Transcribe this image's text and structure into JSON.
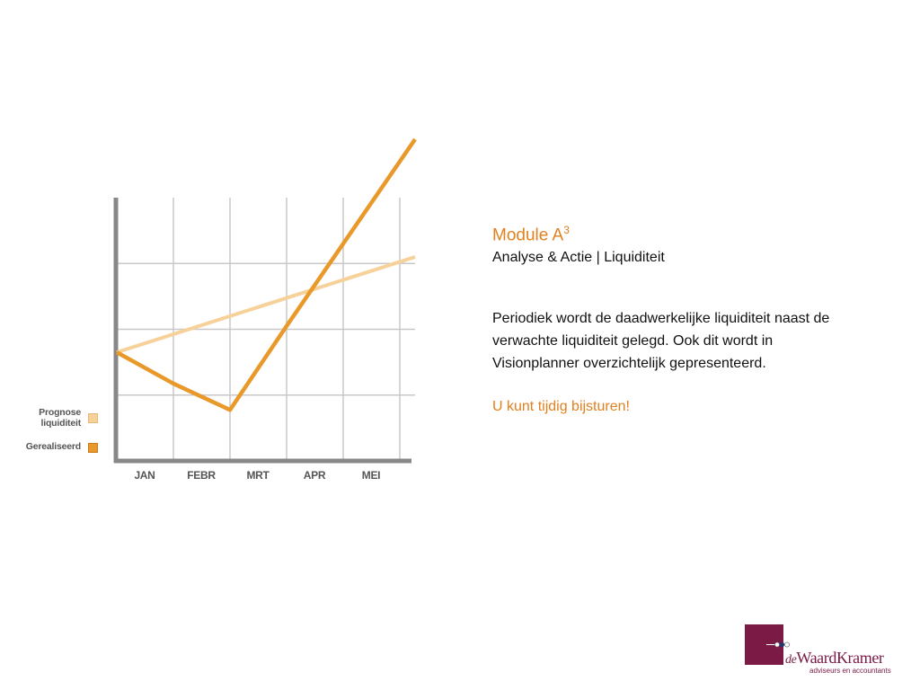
{
  "text": {
    "module_title": "Module A",
    "module_superscript": "3",
    "subtitle": "Analyse & Actie | Liquiditeit",
    "body": "Periodiek wordt de daadwerkelijke liquiditeit naast de verwachte liquiditeit gelegd. Ook dit wordt in Visionplanner overzichtelijk gepresenteerd.",
    "cta": "U kunt tijdig bijsturen!"
  },
  "logo": {
    "prefix": "de",
    "name": "WaardKramer",
    "tagline": "adviseurs en accountants",
    "color": "#7a1a45"
  },
  "chart_data": {
    "type": "line",
    "categories": [
      "JAN",
      "FEBR",
      "MRT",
      "APR",
      "MEI"
    ],
    "series": [
      {
        "name": "Prognose liquiditeit",
        "color": "#f7d19a",
        "values": [
          3.3,
          3.85,
          4.4,
          4.95,
          5.5
        ]
      },
      {
        "name": "Gerealiseerd",
        "color": "#e8992a",
        "values": [
          3.3,
          2.35,
          1.55,
          4.1,
          6.6
        ]
      }
    ],
    "ylim": [
      0,
      8
    ],
    "grid": true,
    "legend_position": "left",
    "axis_color": "#888888",
    "grid_color": "#c8c8c8"
  }
}
